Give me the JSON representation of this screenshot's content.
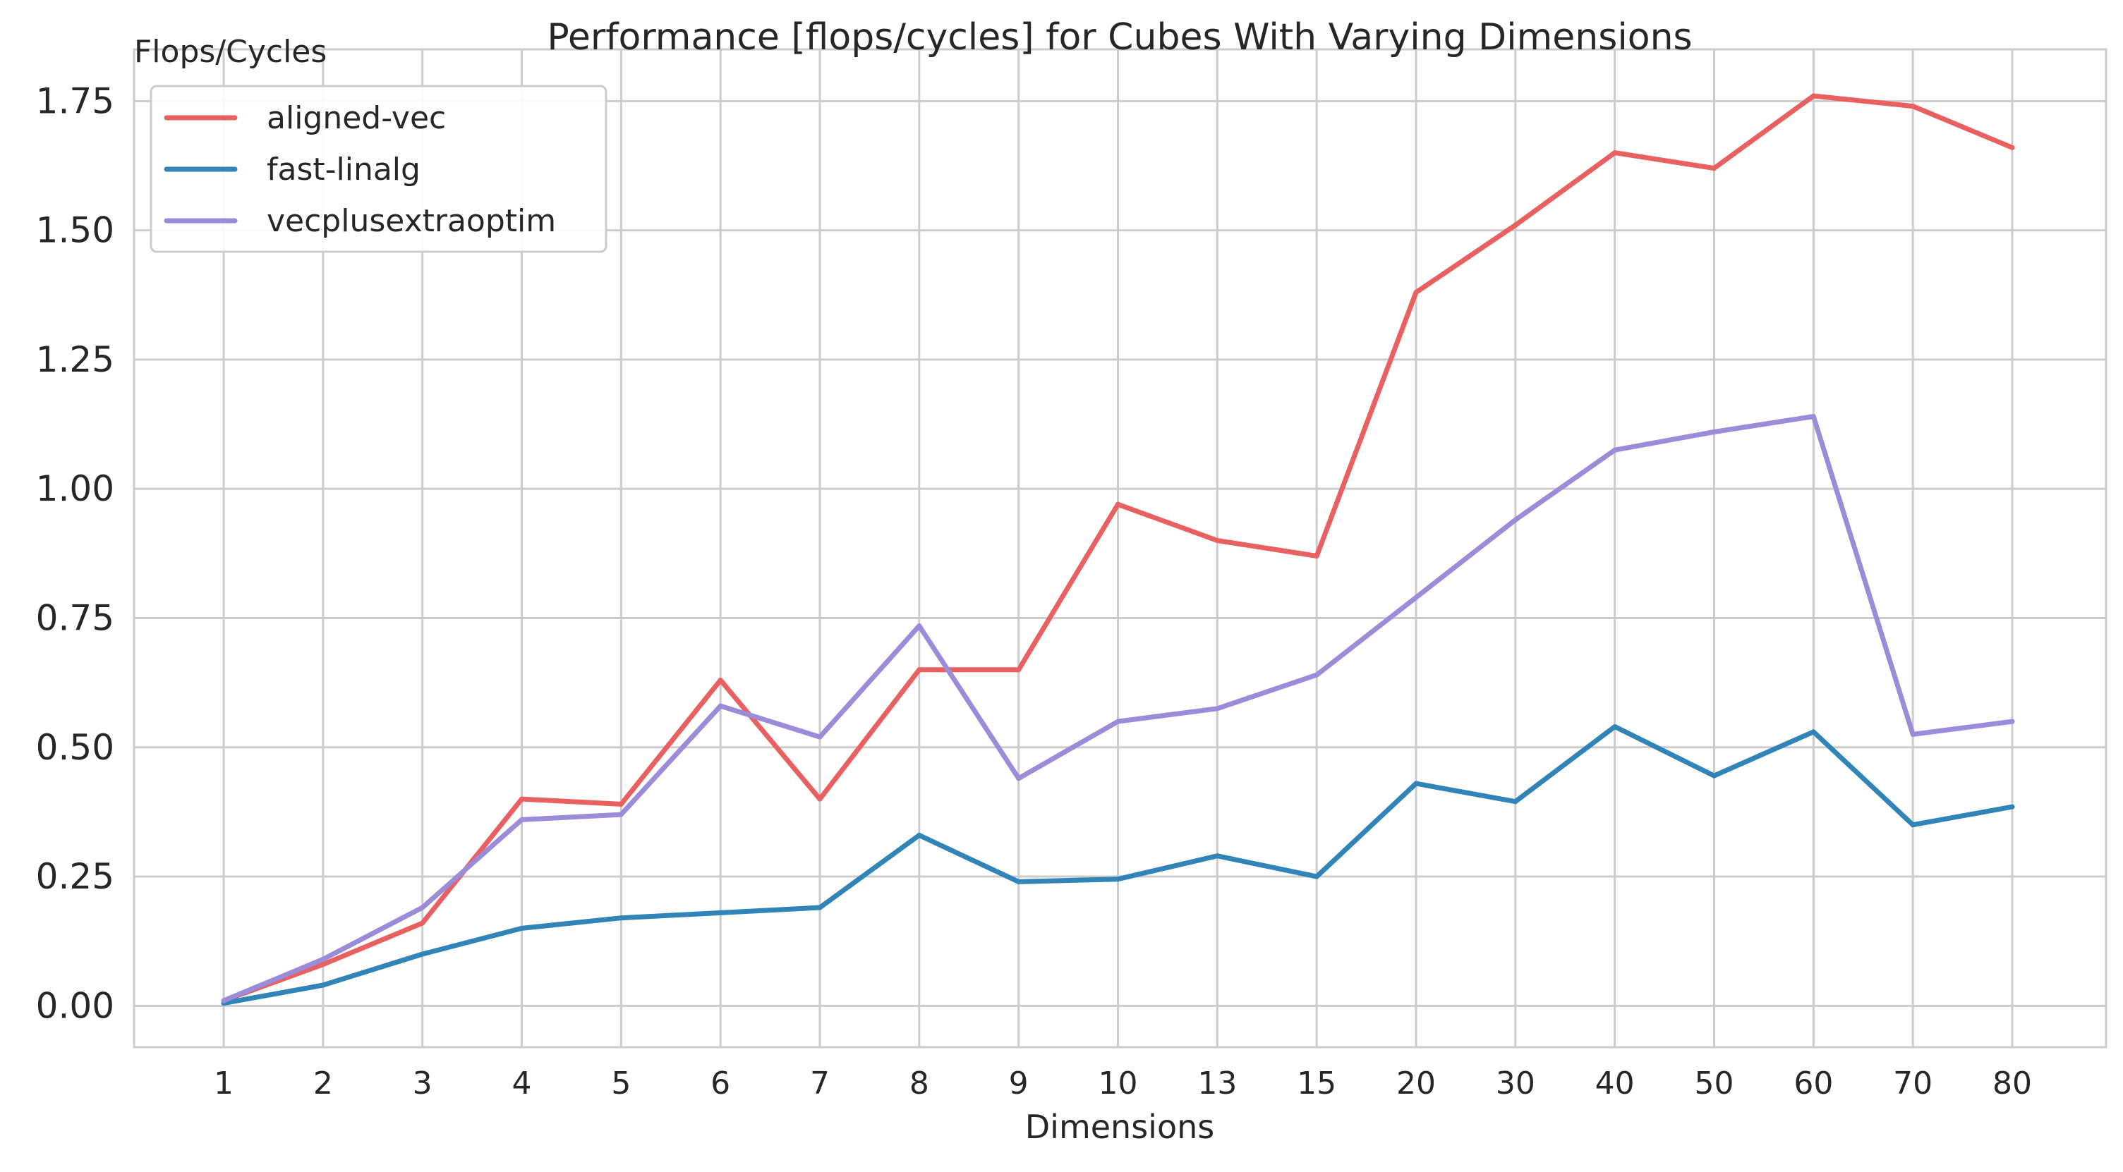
{
  "chart_data": {
    "type": "line",
    "title": "Performance [flops/cycles] for Cubes With Varying Dimensions",
    "xlabel": "Dimensions",
    "ylabel": "Flops/Cycles",
    "categories": [
      "1",
      "2",
      "3",
      "4",
      "5",
      "6",
      "7",
      "8",
      "9",
      "10",
      "13",
      "15",
      "20",
      "30",
      "40",
      "50",
      "60",
      "70",
      "80"
    ],
    "yticks": [
      "0.00",
      "0.25",
      "0.50",
      "0.75",
      "1.00",
      "1.25",
      "1.50",
      "1.75"
    ],
    "ylim": [
      -0.08,
      1.85
    ],
    "grid": true,
    "legend_position": "top-left",
    "series": [
      {
        "name": "aligned-vec",
        "color": "#e8605f",
        "values": [
          0.01,
          0.08,
          0.16,
          0.4,
          0.39,
          0.63,
          0.4,
          0.65,
          0.65,
          0.97,
          0.9,
          0.87,
          1.38,
          1.51,
          1.65,
          1.62,
          1.76,
          1.74,
          1.66
        ]
      },
      {
        "name": "fast-linalg",
        "color": "#3184b8",
        "values": [
          0.005,
          0.04,
          0.1,
          0.15,
          0.17,
          0.18,
          0.19,
          0.33,
          0.24,
          0.245,
          0.29,
          0.25,
          0.43,
          0.395,
          0.54,
          0.445,
          0.53,
          0.35,
          0.385
        ]
      },
      {
        "name": "vecplusextraoptim",
        "color": "#9b8bd8",
        "values": [
          0.01,
          0.09,
          0.19,
          0.36,
          0.37,
          0.58,
          0.52,
          0.735,
          0.44,
          0.55,
          0.575,
          0.64,
          0.79,
          0.94,
          1.075,
          1.11,
          1.14,
          0.525,
          0.55
        ]
      }
    ]
  }
}
